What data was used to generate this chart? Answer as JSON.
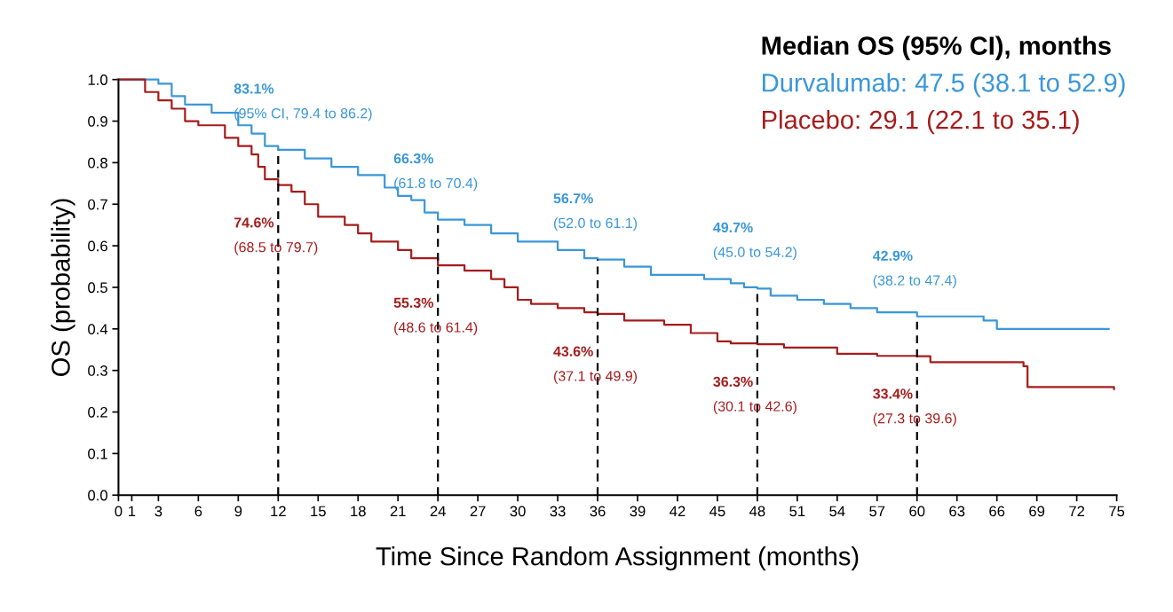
{
  "chart_data": {
    "type": "step",
    "xlabel": "Time Since Random Assignment (months)",
    "ylabel": "OS (probability)",
    "legend_title": "Median OS (95% CI), months",
    "legend": "top right",
    "grid": false,
    "xlim": [
      0,
      75
    ],
    "ylim": [
      0,
      1.0
    ],
    "xticks": [
      0,
      1,
      3,
      6,
      9,
      12,
      15,
      18,
      21,
      24,
      27,
      30,
      33,
      36,
      39,
      42,
      45,
      48,
      51,
      54,
      57,
      60,
      63,
      66,
      69,
      72,
      75
    ],
    "yticks": [
      {
        "value": 0,
        "label": "0.0"
      },
      0.1,
      0.2,
      0.3,
      0.4,
      0.5,
      0.6,
      0.7,
      0.8,
      0.9,
      {
        "value": 1,
        "label": "1.0"
      }
    ],
    "series": [
      {
        "name": "Durvalumab: 47.5 (38.1 to 52.9)",
        "color": "#3a97d8",
        "x": [
          0,
          2,
          3,
          4,
          5,
          7,
          9,
          10,
          11,
          12,
          14,
          16,
          18,
          20,
          21,
          22,
          23,
          24,
          26,
          28,
          30,
          33,
          35,
          36,
          38,
          40,
          42,
          44,
          46,
          47,
          48,
          49,
          51,
          53,
          55,
          57,
          60,
          63,
          65,
          66,
          74.4
        ],
        "values": [
          1.0,
          1.0,
          0.99,
          0.96,
          0.94,
          0.92,
          0.89,
          0.87,
          0.84,
          0.831,
          0.81,
          0.79,
          0.77,
          0.74,
          0.72,
          0.71,
          0.68,
          0.663,
          0.65,
          0.63,
          0.61,
          0.59,
          0.57,
          0.567,
          0.55,
          0.53,
          0.53,
          0.52,
          0.51,
          0.5,
          0.497,
          0.48,
          0.47,
          0.46,
          0.45,
          0.44,
          0.43,
          0.43,
          0.42,
          0.4,
          0.4
        ]
      },
      {
        "name": "Placebo: 29.1 (22.1 to 35.1)",
        "color": "#a51c1c",
        "x": [
          0,
          1,
          2,
          3,
          4,
          5,
          6,
          8,
          9,
          10,
          10.5,
          11,
          12,
          13,
          14,
          15,
          17,
          18,
          19,
          21,
          22,
          24,
          26,
          28,
          29,
          30,
          31,
          33,
          35,
          36,
          38,
          41,
          43,
          45,
          46,
          48,
          50,
          54,
          57,
          60,
          61,
          68,
          68.3,
          74.8
        ],
        "values": [
          1.0,
          1.0,
          0.97,
          0.95,
          0.93,
          0.9,
          0.89,
          0.86,
          0.84,
          0.82,
          0.79,
          0.76,
          0.746,
          0.73,
          0.7,
          0.67,
          0.65,
          0.63,
          0.61,
          0.59,
          0.57,
          0.553,
          0.54,
          0.52,
          0.5,
          0.47,
          0.46,
          0.45,
          0.44,
          0.436,
          0.42,
          0.41,
          0.39,
          0.37,
          0.365,
          0.363,
          0.355,
          0.34,
          0.335,
          0.334,
          0.32,
          0.31,
          0.26,
          0.255
        ]
      }
    ],
    "ref_lines": [
      {
        "axis": "x",
        "value": 12,
        "color": "#000000",
        "line_style": "dashed"
      },
      {
        "axis": "x",
        "value": 24,
        "color": "#000000",
        "line_style": "dashed"
      },
      {
        "axis": "x",
        "value": 36,
        "color": "#000000",
        "line_style": "dashed"
      },
      {
        "axis": "x",
        "value": 48,
        "color": "#000000",
        "line_style": "dashed"
      },
      {
        "axis": "x",
        "value": 60,
        "color": "#000000",
        "line_style": "dashed"
      }
    ],
    "annotations": [
      {
        "text": "83.1%\n(95% CI, 79.4 to 86.2)",
        "x": 12,
        "y": 0.831
      },
      {
        "text": "66.3%\n(61.8 to 70.4)",
        "x": 24,
        "y": 0.663
      },
      {
        "text": "56.7%\n(52.0 to 61.1)",
        "x": 36,
        "y": 0.567
      },
      {
        "text": "49.7%\n(45.0 to 54.2)",
        "x": 48,
        "y": 0.497
      },
      {
        "text": "42.9%\n(38.2 to 47.4)",
        "x": 60,
        "y": 0.429
      },
      {
        "text": "74.6%\n(68.5 to 79.7)",
        "x": 12,
        "y": 0.746
      },
      {
        "text": "55.3%\n(48.6 to 61.4)",
        "x": 24,
        "y": 0.553
      },
      {
        "text": "43.6%\n(37.1 to 49.9)",
        "x": 36,
        "y": 0.436
      },
      {
        "text": "36.3%\n(30.1 to 42.6)",
        "x": 48,
        "y": 0.363
      },
      {
        "text": "33.4%\n(27.3 to 39.6)",
        "x": 60,
        "y": 0.334
      }
    ]
  }
}
